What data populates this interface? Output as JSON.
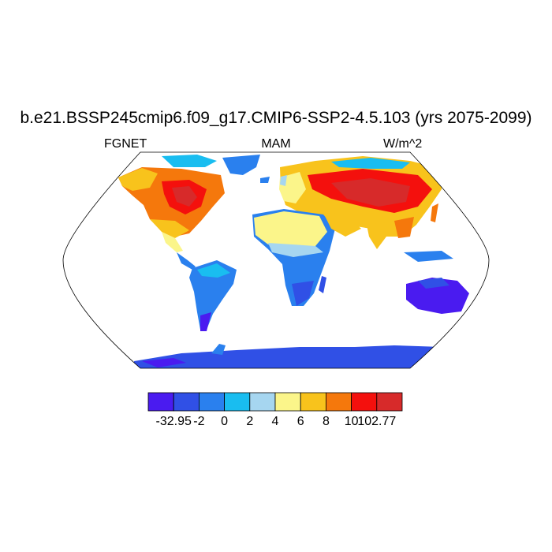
{
  "title": "b.e21.BSSP245cmip6.f09_g17.CMIP6-SSP2-4.5.103 (yrs 2075-2099)",
  "left_label": "FGNET",
  "center_label": "MAM",
  "right_label": "W/m^2",
  "colorbar": {
    "colors": [
      "#4a1bf0",
      "#3050e6",
      "#2a80ee",
      "#19bdf0",
      "#a6d6f0",
      "#fbf58a",
      "#f8c31c",
      "#f5780c",
      "#f4100d",
      "#d72a2a"
    ],
    "labels": [
      "-32.95",
      "-2",
      "0",
      "2",
      "4",
      "6",
      "8",
      "10",
      "102.77"
    ]
  },
  "map_data": {
    "projection": "Robinson",
    "variable": "FGNET",
    "season": "MAM",
    "units": "W/m^2",
    "range": [
      -32.95,
      102.77
    ],
    "regions": [
      {
        "name": "North America interior",
        "value_class": "8 to 10+"
      },
      {
        "name": "Greenland",
        "value_class": "-2 to 0"
      },
      {
        "name": "Arctic islands",
        "value_class": "0 to 4"
      },
      {
        "name": "Central Asia / Siberia",
        "value_class": "8 to 102.77"
      },
      {
        "name": "Sahara",
        "value_class": "4 to 6"
      },
      {
        "name": "Sub-Saharan Africa",
        "value_class": "-2 to 2"
      },
      {
        "name": "South America",
        "value_class": "-2 to 2"
      },
      {
        "name": "Australia",
        "value_class": "-32.95 to -2"
      },
      {
        "name": "Antarctica",
        "value_class": "-32.95 to -2"
      },
      {
        "name": "India / Southeast Asia",
        "value_class": "6 to 10"
      }
    ]
  }
}
